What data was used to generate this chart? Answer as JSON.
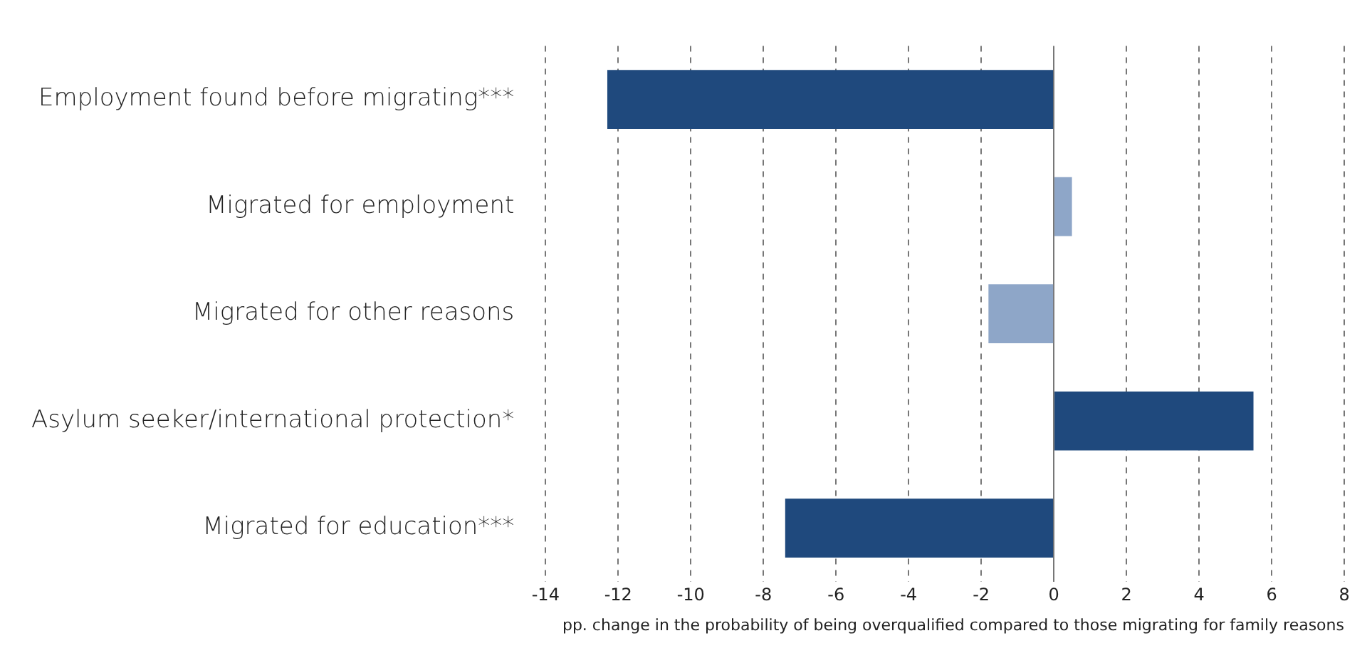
{
  "chart_data": {
    "type": "bar",
    "orientation": "horizontal",
    "categories": [
      "Employment found before migrating***",
      "Migrated for employment",
      "Migrated for other reasons",
      "Asylum seeker/international protection*",
      "Migrated for education***"
    ],
    "values": [
      -12.3,
      0.5,
      -1.8,
      5.5,
      -7.4
    ],
    "colors": [
      "#1f497d",
      "#8ea6c8",
      "#8ea6c8",
      "#1f497d",
      "#1f497d"
    ],
    "xlim": [
      -14,
      8
    ],
    "xticks": [
      -14,
      -12,
      -10,
      -8,
      -6,
      -4,
      -2,
      0,
      2,
      4,
      6,
      8
    ],
    "xlabel": "pp. change in the probability of being overqualified compared to those migrating for family reasons",
    "grid": "x"
  }
}
